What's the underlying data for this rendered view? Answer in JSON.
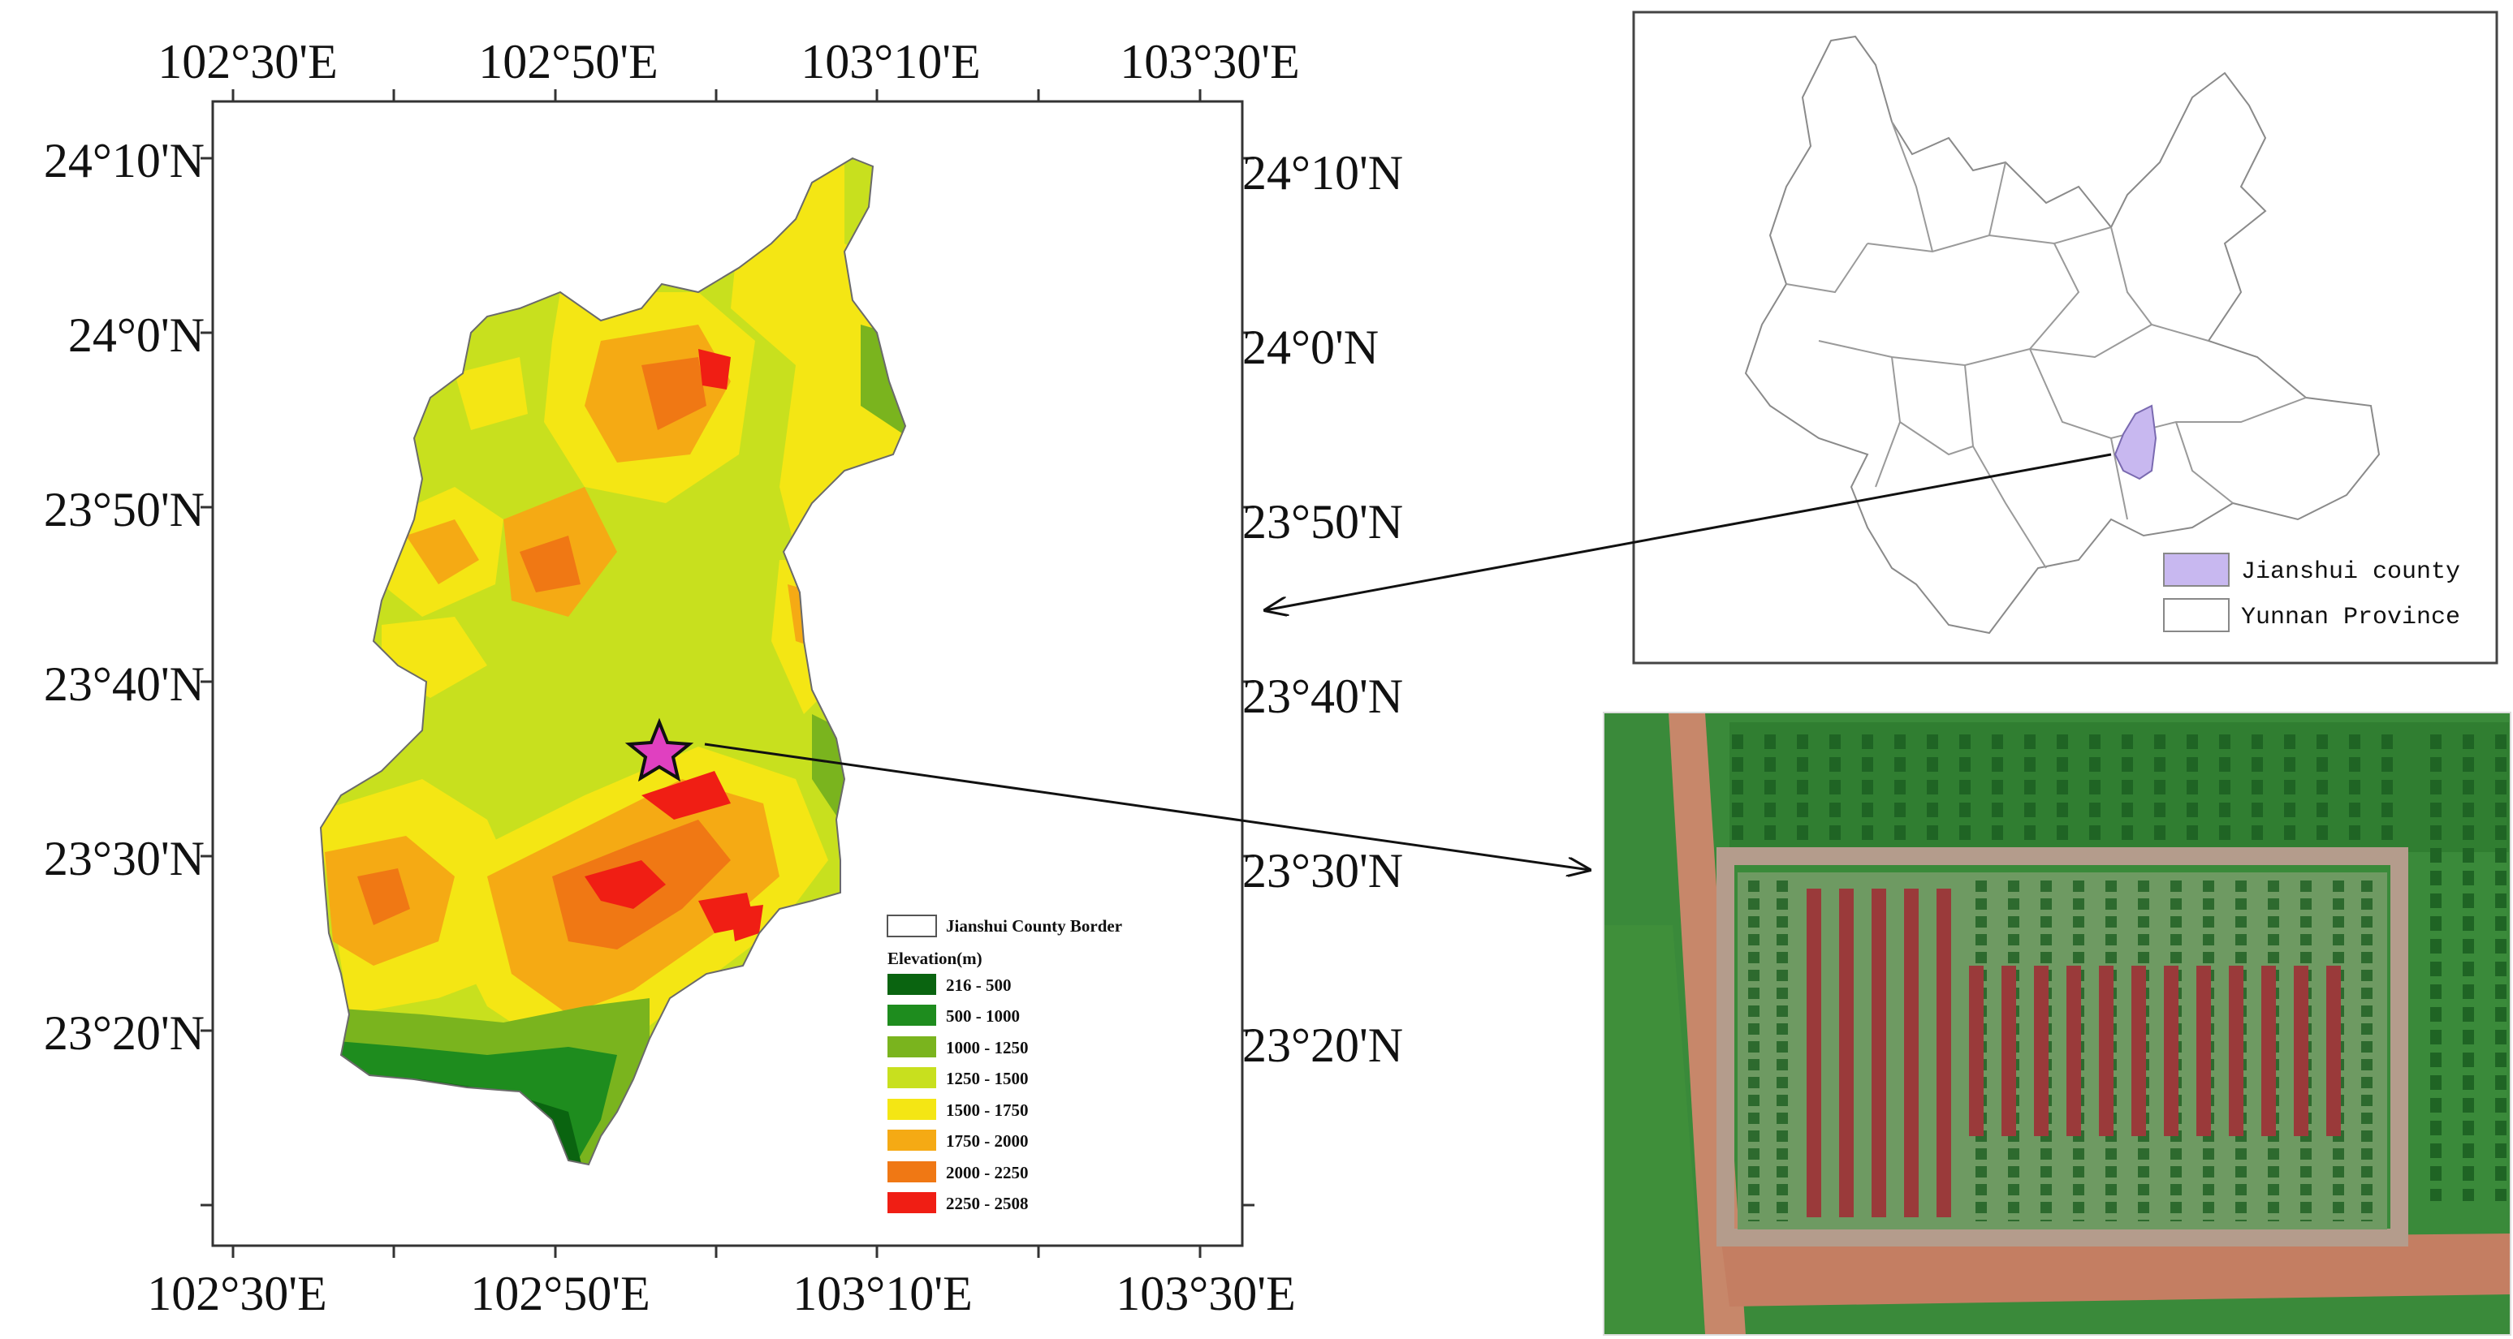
{
  "main_map": {
    "top_lon_labels": [
      "102°30'E",
      "102°50'E",
      "103°10'E",
      "103°30'E"
    ],
    "bottom_lon_labels": [
      "102°30'E",
      "102°50'E",
      "103°10'E",
      "103°30'E"
    ],
    "left_lat_labels": [
      "24°10'N",
      "24°0'N",
      "23°50'N",
      "23°40'N",
      "23°30'N",
      "23°20'N"
    ],
    "right_lat_labels": [
      "24°10'N",
      "24°0'N",
      "23°50'N",
      "23°40'N",
      "23°30'N",
      "23°20'N"
    ],
    "legend": {
      "border_label": "Jianshui County Border",
      "elevation_title": "Elevation(m)",
      "classes": [
        {
          "label": "216 - 500",
          "color": "#0a6410"
        },
        {
          "label": "500 - 1000",
          "color": "#1e8c1e"
        },
        {
          "label": "1000 - 1250",
          "color": "#7ab41e"
        },
        {
          "label": "1250 - 1500",
          "color": "#c8e01e"
        },
        {
          "label": "1500 - 1750",
          "color": "#f4e614"
        },
        {
          "label": "1750 - 2000",
          "color": "#f5aa14"
        },
        {
          "label": "2000 - 2250",
          "color": "#f07814"
        },
        {
          "label": "2250 - 2508",
          "color": "#f01e14"
        }
      ]
    },
    "study_site_marker": "star",
    "study_site_color": "#e040c0"
  },
  "inset_map": {
    "legend": [
      {
        "label": "Jianshui county",
        "color": "#c8b8f0"
      },
      {
        "label": "Yunnan Province",
        "color": "#ffffff"
      }
    ]
  },
  "aerial_photo": {
    "description_icon": "orchard-aerial-image"
  }
}
